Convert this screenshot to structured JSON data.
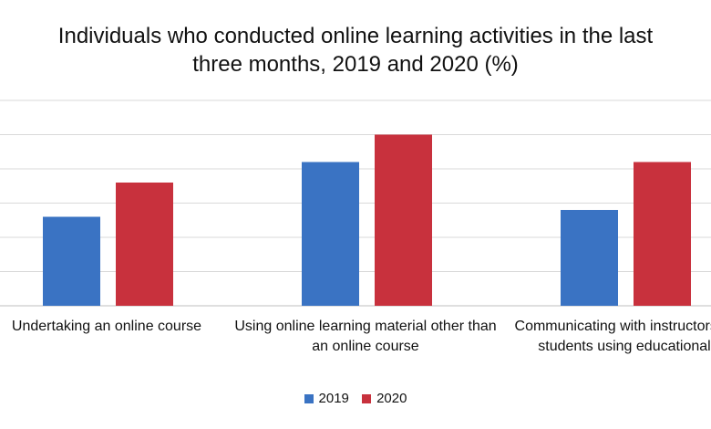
{
  "chart_data": {
    "type": "bar",
    "title_line1": "Individuals who conducted online learning activities in the last",
    "title_line2": "three months, 2019 and 2020 (%)",
    "categories": [
      [
        "Undertaking an online course"
      ],
      [
        "Using online learning material other than",
        "an online course"
      ],
      [
        "Communicating with instructors or",
        "students using educational"
      ]
    ],
    "series": [
      {
        "name": "2019",
        "color": "#3A73C3",
        "values": [
          13,
          21,
          14
        ]
      },
      {
        "name": "2020",
        "color": "#C8313D",
        "values": [
          18,
          25,
          21
        ]
      }
    ],
    "ylim": [
      0,
      30
    ],
    "grid": true,
    "legend_position": "bottom"
  }
}
